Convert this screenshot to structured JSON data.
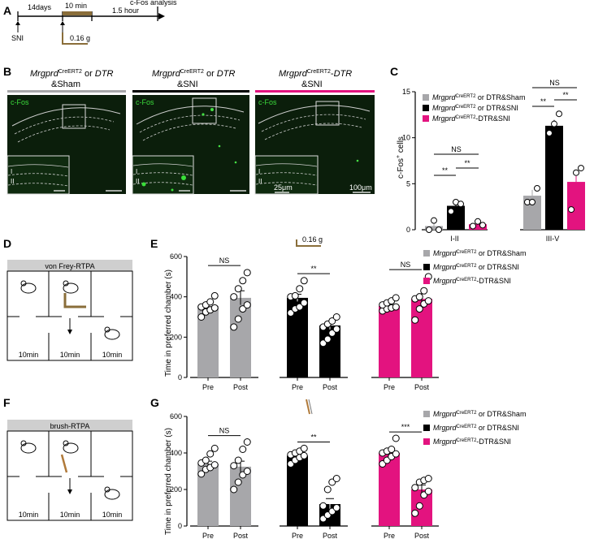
{
  "panels": {
    "A": {
      "letter": "A",
      "timeline": {
        "interval1": "14days",
        "interval2": "10 min",
        "interval3": "1.5 hour",
        "end_label": "c-Fos analysis",
        "event": "SNI",
        "filament_label": "0.16 g"
      }
    },
    "B": {
      "letter": "B",
      "groups": [
        {
          "title_ital": "Mrgprd",
          "title_sup": "CreERT2",
          "title_rest": " or ",
          "title_ital2": "DTR",
          "line2": "&Sham",
          "color": "#a7a7aa"
        },
        {
          "title_ital": "Mrgprd",
          "title_sup": "CreERT2",
          "title_rest": " or ",
          "title_ital2": "DTR",
          "line2": "&SNI",
          "color": "#000000"
        },
        {
          "title_ital": "Mrgprd",
          "title_sup": "CreERT2",
          "title_rest": "-",
          "title_ital2": "DTR",
          "line2": "&SNI",
          "color": "#e3137f"
        }
      ],
      "stain": "c-Fos",
      "lamina_i": "I",
      "lamina_ii": "II",
      "scale_small": "25μm",
      "scale_large": "100μm"
    },
    "C": {
      "letter": "C",
      "ylabel_main": "c-Fos",
      "ylabel_sup": "+",
      "ylabel_tail": " cells",
      "legend": [
        {
          "name": "Mrgprd",
          "sup": "CreERT2",
          "rest": " or DTR&Sham",
          "color": "#a7a7aa"
        },
        {
          "name": "Mrgprd",
          "sup": "CreERT2",
          "rest": " or DTR&SNI",
          "color": "#000000"
        },
        {
          "name": "Mrgprd",
          "sup": "CreERT2",
          "rest": "-DTR&SNI",
          "color": "#e3137f"
        }
      ],
      "sig": {
        "ns1": "NS",
        "s1": "**",
        "s2": "**",
        "ns2": "NS",
        "s3": "**",
        "s4": "**"
      }
    },
    "D": {
      "letter": "D",
      "title": "von Frey-RTPA",
      "times": [
        "10min",
        "10min",
        "10min"
      ]
    },
    "E": {
      "letter": "E",
      "filament_label": "0.16 g",
      "sig": [
        "NS",
        "**",
        "NS"
      ]
    },
    "F": {
      "letter": "F",
      "title": "brush-RTPA",
      "times": [
        "10min",
        "10min",
        "10min"
      ]
    },
    "G": {
      "letter": "G",
      "sig": [
        "NS",
        "**",
        "***"
      ]
    },
    "EG_legend": [
      {
        "name": "Mrgprd",
        "sup": "CreERT2",
        "rest": " or DTR&Sham",
        "color": "#a7a7aa"
      },
      {
        "name": "Mrgprd",
        "sup": "CreERT2",
        "rest": " or DTR&SNI",
        "color": "#000000"
      },
      {
        "name": "Mrgprd",
        "sup": "CreERT2",
        "rest": "-DTR&SNI",
        "color": "#e3137f"
      }
    ]
  },
  "chart_data": [
    {
      "type": "bar",
      "panel": "C",
      "ylabel": "c-Fos+ cells",
      "ylim": [
        0,
        15
      ],
      "yticks": [
        0,
        5,
        10,
        15
      ],
      "categories": [
        "I-II",
        "III-V"
      ],
      "series": [
        {
          "name": "MrgprdCreERT2 or DTR&Sham",
          "color": "#a7a7aa",
          "values": [
            0.4,
            3.7
          ],
          "points": [
            [
              0,
              1,
              0
            ],
            [
              3,
              3,
              4.5
            ]
          ]
        },
        {
          "name": "MrgprdCreERT2 or DTR&SNI",
          "color": "#000000",
          "values": [
            2.6,
            11.3
          ],
          "points": [
            [
              2,
              3,
              2.8
            ],
            [
              10.5,
              11.5,
              12.6
            ]
          ]
        },
        {
          "name": "MrgprdCreERT2-DTR&SNI",
          "color": "#e3137f",
          "values": [
            0.6,
            5.2
          ],
          "points": [
            [
              0.4,
              0.9,
              0.5
            ],
            [
              2.2,
              6.2,
              6.7
            ]
          ]
        }
      ]
    },
    {
      "type": "bar",
      "panel": "E",
      "ylabel": "Time in preferred chamber (s)",
      "ylim": [
        0,
        600
      ],
      "yticks": [
        0,
        200,
        400,
        600
      ],
      "groups": [
        {
          "name": "MrgprdCreERT2 or DTR&Sham",
          "color": "#a7a7aa",
          "categories": [
            "Pre",
            "Post"
          ],
          "values": [
            355,
            395
          ],
          "errors": [
            15,
            35
          ],
          "points": [
            [
              300,
              325,
              335,
              345,
              350,
              360,
              375,
              405
            ],
            [
              250,
              290,
              340,
              360,
              400,
              440,
              480,
              520
            ]
          ]
        },
        {
          "name": "MrgprdCreERT2 or DTR&SNI",
          "color": "#000000",
          "categories": [
            "Pre",
            "Post"
          ],
          "values": [
            395,
            258
          ],
          "errors": [
            18,
            20
          ],
          "points": [
            [
              320,
              340,
              350,
              370,
              400,
              405,
              440,
              480
            ],
            [
              170,
              190,
              220,
              240,
              250,
              265,
              280,
              300
            ]
          ]
        },
        {
          "name": "MrgprdCreERT2-DTR&SNI",
          "color": "#e3137f",
          "categories": [
            "Pre",
            "Post"
          ],
          "values": [
            355,
            390
          ],
          "errors": [
            12,
            25
          ],
          "points": [
            [
              330,
              340,
              345,
              350,
              360,
              370,
              380,
              395
            ],
            [
              285,
              340,
              365,
              380,
              390,
              400,
              430,
              500
            ]
          ]
        }
      ]
    },
    {
      "type": "bar",
      "panel": "G",
      "ylabel": "Time in preferred chamber (s)",
      "ylim": [
        0,
        600
      ],
      "yticks": [
        0,
        200,
        400,
        600
      ],
      "groups": [
        {
          "name": "MrgprdCreERT2 or DTR&Sham",
          "color": "#a7a7aa",
          "categories": [
            "Pre",
            "Post"
          ],
          "values": [
            340,
            325
          ],
          "errors": [
            15,
            30
          ],
          "points": [
            [
              285,
              310,
              320,
              335,
              345,
              360,
              395,
              425
            ],
            [
              200,
              240,
              280,
              300,
              330,
              360,
              420,
              460
            ]
          ]
        },
        {
          "name": "MrgprdCreERT2 or DTR&SNI",
          "color": "#000000",
          "categories": [
            "Pre",
            "Post"
          ],
          "values": [
            385,
            120
          ],
          "errors": [
            12,
            30
          ],
          "points": [
            [
              340,
              360,
              375,
              385,
              390,
              400,
              410,
              425
            ],
            [
              40,
              60,
              80,
              100,
              110,
              200,
              240,
              260
            ]
          ]
        },
        {
          "name": "MrgprdCreERT2-DTR&SNI",
          "color": "#e3137f",
          "categories": [
            "Pre",
            "Post"
          ],
          "values": [
            400,
            200
          ],
          "errors": [
            20,
            25
          ],
          "points": [
            [
              340,
              360,
              380,
              395,
              400,
              410,
              420,
              480
            ],
            [
              70,
              110,
              170,
              190,
              210,
              240,
              250,
              260
            ]
          ]
        }
      ]
    }
  ]
}
